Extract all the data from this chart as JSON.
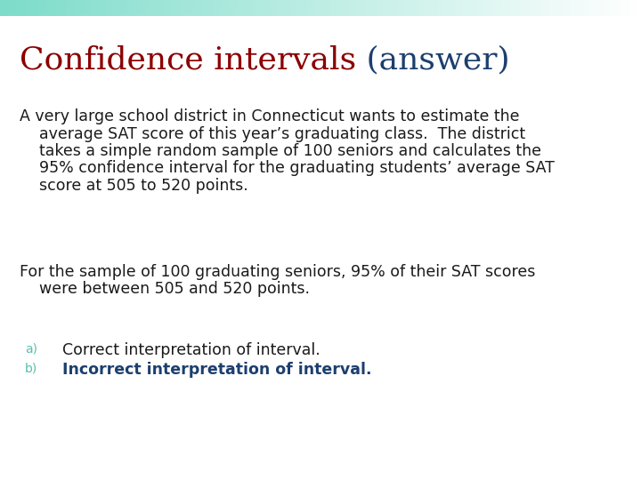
{
  "title_part1": "Confidence intervals",
  "title_part2": " (answer)",
  "title_color1": "#8B0000",
  "title_color2": "#1C3F6E",
  "title_fontsize": 26,
  "background_color": "#FFFFFF",
  "body_text_color": "#1a1a1a",
  "paragraph1_lines": [
    "A very large school district in Connecticut wants to estimate the",
    "    average SAT score of this year’s graduating class.  The district",
    "    takes a simple random sample of 100 seniors and calculates the",
    "    95% confidence interval for the graduating students’ average SAT",
    "    score at 505 to 520 points."
  ],
  "paragraph2_lines": [
    "For the sample of 100 graduating seniors, 95% of their SAT scores",
    "    were between 505 and 520 points."
  ],
  "label_a": "a)",
  "label_b": "b)",
  "label_color": "#5BBFAA",
  "item_a_text": "Correct interpretation of interval.",
  "item_b_text": "Incorrect interpretation of interval.",
  "item_b_color": "#1C3F6E",
  "item_a_color": "#1a1a1a",
  "body_fontsize": 12.5,
  "label_fontsize": 10,
  "bar_gradient_left": "#7DDCCA",
  "bar_gradient_right": "#FFFFFF"
}
